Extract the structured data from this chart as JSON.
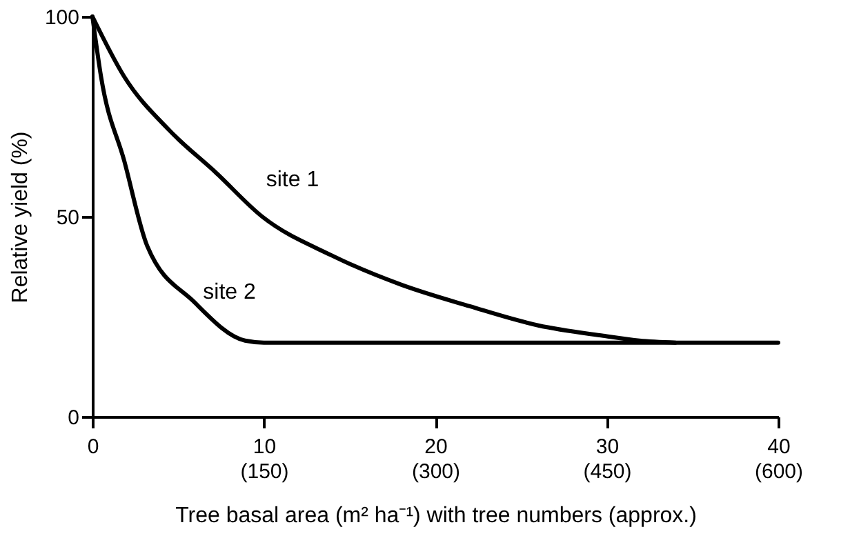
{
  "chart_data": {
    "type": "line",
    "xlabel": "Tree basal area (m² ha⁻¹) with tree numbers (approx.)",
    "ylabel": "Relative yield (%)",
    "xlim": [
      0,
      40
    ],
    "ylim": [
      0,
      100
    ],
    "xticks": [
      0,
      10,
      20,
      30,
      40
    ],
    "x2lim": [
      0,
      600
    ],
    "x2ticks": [
      {
        "value": 150,
        "label": "(150)"
      },
      {
        "value": 300,
        "label": "(300)"
      },
      {
        "value": 450,
        "label": "(450)"
      },
      {
        "value": 600,
        "label": "(600)"
      }
    ],
    "yticks": [
      0,
      50,
      100
    ],
    "grid": false,
    "legend": false,
    "marker": "none",
    "line_style": "solid",
    "series": [
      {
        "name": "site 1",
        "color": "#000000",
        "x": [
          0,
          1.85,
          4.5,
          7.2,
          9.9,
          13.9,
          18,
          22,
          26,
          29.8,
          31.9,
          34
        ],
        "values": [
          100,
          85,
          71.5,
          61,
          50,
          40.4,
          33,
          27.6,
          22.8,
          20.2,
          19,
          18.5
        ]
      },
      {
        "name": "site 2",
        "color": "#000000",
        "x": [
          0,
          0.5,
          1.85,
          3.2,
          5.9,
          8.9,
          10,
          40
        ],
        "values": [
          100,
          85,
          64,
          42.6,
          28.8,
          19,
          18.5,
          18.5
        ]
      }
    ]
  }
}
